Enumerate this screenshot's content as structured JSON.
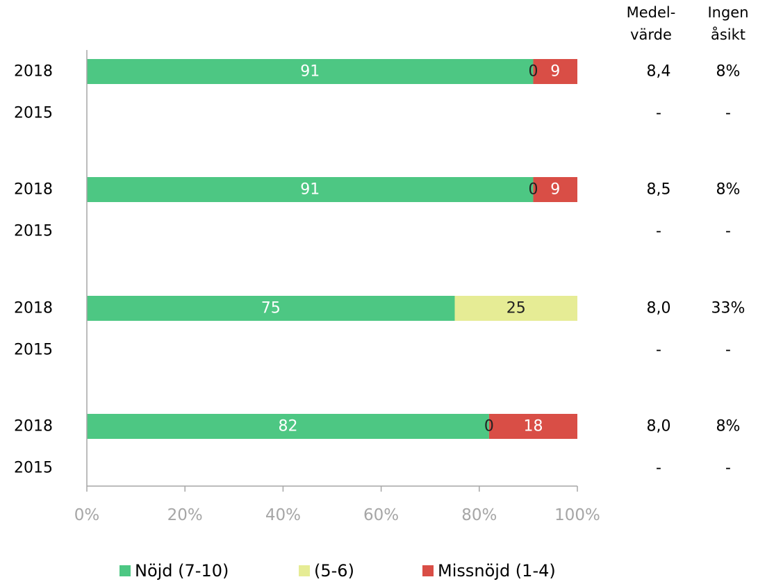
{
  "colors": {
    "satisfied": "#4dc783",
    "neutral": "#e6ec95",
    "dissatisfied": "#d94e46",
    "axis": "#a6a6a6",
    "tick_text": "#a6a6a6"
  },
  "headers": {
    "mean_l1": "Medel-",
    "mean_l2": "värde",
    "noopinion_l1": "Ingen",
    "noopinion_l2": "åsikt"
  },
  "legend": [
    {
      "label": "Nöjd (7-10)",
      "color": "#4dc783"
    },
    {
      "label": "(5-6)",
      "color": "#e6ec95"
    },
    {
      "label": "Missnöjd (1-4)",
      "color": "#d94e46"
    }
  ],
  "chart_data": {
    "type": "bar",
    "orientation": "horizontal",
    "stacked": true,
    "percent": true,
    "xlim": [
      0,
      100
    ],
    "xticks": [
      "0%",
      "20%",
      "40%",
      "60%",
      "80%",
      "100%"
    ],
    "categories": [
      "2018",
      "2015",
      "2018",
      "2015",
      "2018",
      "2015",
      "2018",
      "2015"
    ],
    "series": [
      {
        "name": "Nöjd (7-10)",
        "values": [
          91,
          null,
          91,
          null,
          75,
          null,
          82,
          null
        ],
        "labels": [
          "91",
          "",
          "91",
          "",
          "75",
          "",
          "82",
          ""
        ]
      },
      {
        "name": "(5-6)",
        "values": [
          0,
          null,
          0,
          null,
          25,
          null,
          0,
          null
        ],
        "labels": [
          "0",
          "",
          "0",
          "",
          "25",
          "",
          "0",
          ""
        ]
      },
      {
        "name": "Missnöjd (1-4)",
        "values": [
          9,
          null,
          9,
          null,
          0,
          null,
          18,
          null
        ],
        "labels": [
          "9",
          "",
          "9",
          "",
          "",
          "",
          "18",
          ""
        ]
      }
    ],
    "mean": [
      "8,4",
      "-",
      "8,5",
      "-",
      "8,0",
      "-",
      "8,0",
      "-"
    ],
    "no_opinion": [
      "8%",
      "-",
      "8%",
      "-",
      "33%",
      "-",
      "8%",
      "-"
    ]
  }
}
